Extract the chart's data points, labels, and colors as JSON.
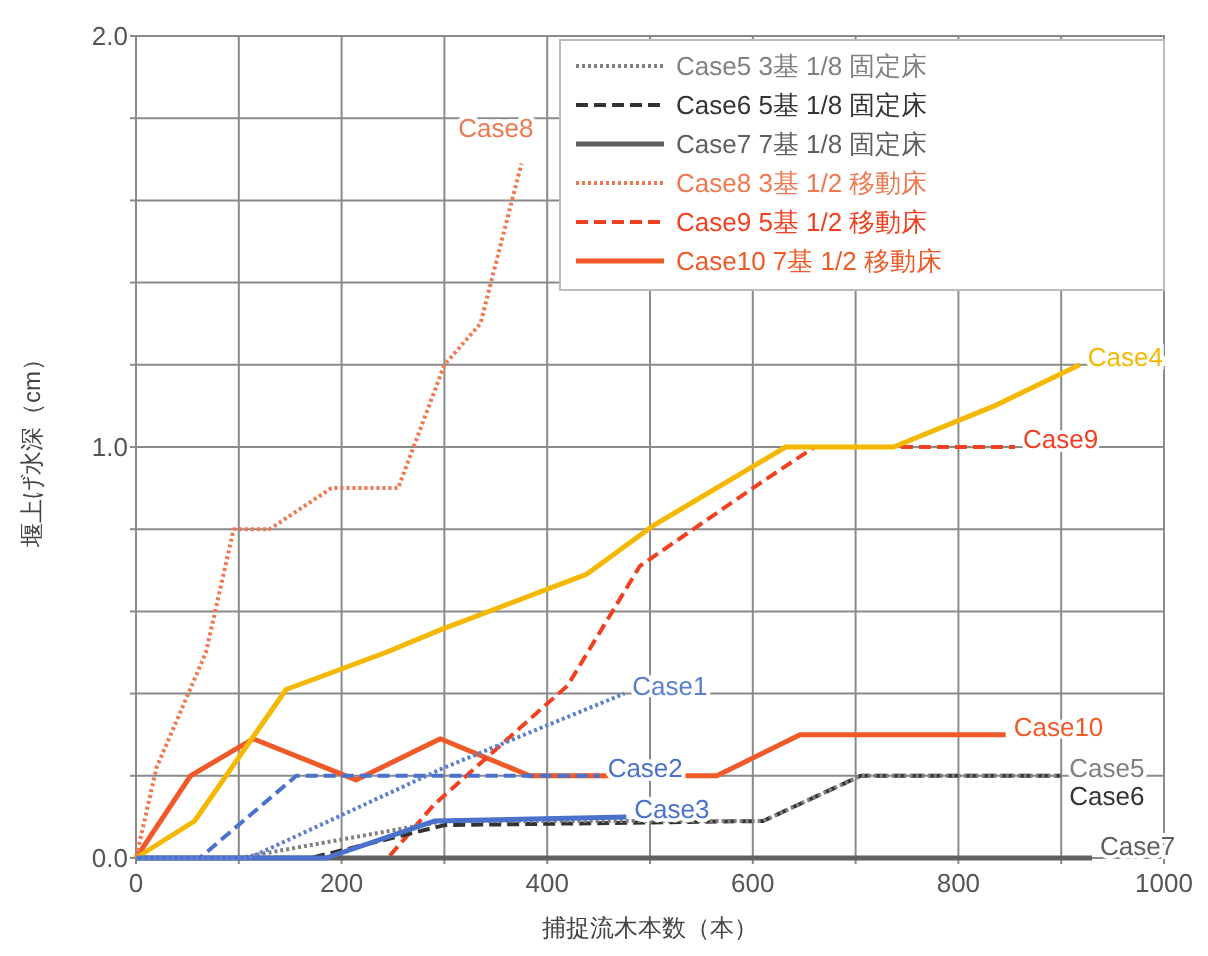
{
  "chart_data": {
    "type": "line",
    "xlabel": "捕捉流木本数（本）",
    "ylabel": "堰上げ水深（cm）",
    "xlim": [
      0,
      1000
    ],
    "ylim": [
      0,
      2.0
    ],
    "xticks": [
      0,
      {
        "value": 100,
        "label": null
      },
      200,
      {
        "value": 300,
        "label": null
      },
      400,
      {
        "value": 500,
        "label": null
      },
      600,
      {
        "value": 700,
        "label": null
      },
      800,
      {
        "value": 900,
        "label": null
      },
      1000
    ],
    "yticks": [
      {
        "value": 0,
        "label": "0.0"
      },
      {
        "value": 0.2,
        "label": null
      },
      {
        "value": 0.4,
        "label": null
      },
      {
        "value": 0.6,
        "label": null
      },
      {
        "value": 0.8,
        "label": null
      },
      {
        "value": 1.0,
        "label": "1.0"
      },
      {
        "value": 1.2,
        "label": null
      },
      {
        "value": 1.4,
        "label": null
      },
      {
        "value": 1.6,
        "label": null
      },
      {
        "value": 1.8,
        "label": null
      },
      {
        "value": 2.0,
        "label": "2.0"
      }
    ],
    "grid": true,
    "legend": "top right",
    "marker": "none",
    "series": [
      {
        "color": "#5b7fd0",
        "line_style": "dotted",
        "x": [
          0,
          110,
          300,
          475
        ],
        "values": [
          0,
          0,
          0.22,
          0.4
        ]
      },
      {
        "color": "#4a72cc",
        "line_style": "dashed",
        "x": [
          0,
          62,
          156,
          451
        ],
        "values": [
          0,
          0,
          0.2,
          0.2
        ]
      },
      {
        "color": "#4a72cc",
        "line_style": "solid",
        "x": [
          0,
          185,
          290,
          477
        ],
        "values": [
          0,
          0,
          0.09,
          0.1
        ]
      },
      {
        "color": "#f5b800",
        "line_style": "solid",
        "x": [
          0,
          57,
          146,
          243,
          296,
          438,
          504,
          632,
          737,
          835,
          918
        ],
        "values": [
          0,
          0.09,
          0.41,
          0.5,
          0.555,
          0.69,
          0.81,
          1.0,
          1.0,
          1.1,
          1.2
        ]
      },
      {
        "name": "Case5 3基 1/8 固定床",
        "color": "#808080",
        "line_style": "dotted",
        "x": [
          0,
          100,
          300,
          610,
          705,
          900
        ],
        "values": [
          0,
          0,
          0.09,
          0.09,
          0.2,
          0.2
        ]
      },
      {
        "name": "Case6 5基 1/8 固定床",
        "color": "#333333",
        "line_style": "dashed",
        "x": [
          0,
          170,
          300,
          610,
          705,
          900
        ],
        "values": [
          0,
          0,
          0.08,
          0.09,
          0.2,
          0.2
        ]
      },
      {
        "name": "Case7 7基 1/8 固定床",
        "color": "#606060",
        "line_style": "solid",
        "x": [
          0,
          930
        ],
        "values": [
          0,
          0
        ]
      },
      {
        "name": "Case8 3基 1/2 移動床",
        "color": "#f07850",
        "line_style": "dotted",
        "x": [
          0,
          20,
          68,
          95,
          130,
          190,
          255,
          300,
          335,
          375
        ],
        "values": [
          0,
          0.22,
          0.5,
          0.8,
          0.8,
          0.9,
          0.9,
          1.2,
          1.3,
          1.69
        ]
      },
      {
        "name": "Case9 5基 1/2 移動床",
        "color": "#f04020",
        "line_style": "dashed",
        "x": [
          0,
          245,
          290,
          420,
          490,
          600,
          660,
          855
        ],
        "values": [
          0,
          0,
          0.13,
          0.42,
          0.71,
          0.9,
          1.0,
          1.0
        ]
      },
      {
        "name": "Case10 7基 1/2 移動床",
        "color": "#f05a28",
        "line_style": "solid",
        "x": [
          0,
          53,
          114,
          214,
          296,
          383,
          565,
          646,
          846
        ],
        "values": [
          0,
          0.2,
          0.29,
          0.19,
          0.29,
          0.2,
          0.2,
          0.3,
          0.3
        ]
      }
    ],
    "annotations": [
      "Case1",
      "Case2",
      "Case3",
      "Case4",
      "Case5",
      "Case6",
      "Case7",
      "Case8",
      "Case9",
      "Case10"
    ]
  }
}
